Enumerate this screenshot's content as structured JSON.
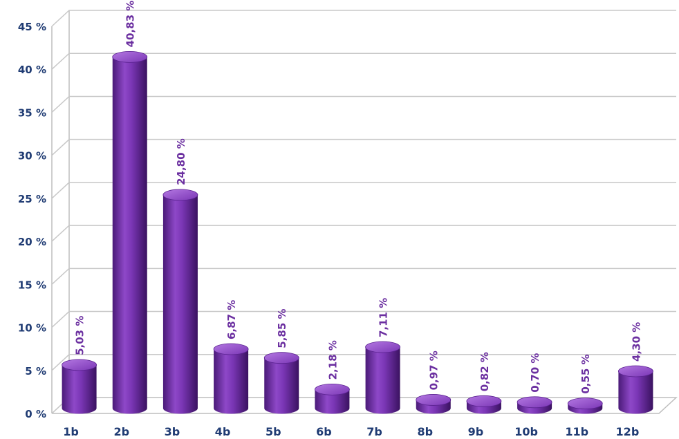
{
  "chart_data": {
    "type": "bar",
    "categories": [
      "1b",
      "2b",
      "3b",
      "4b",
      "5b",
      "6b",
      "7b",
      "8b",
      "9b",
      "10b",
      "11b",
      "12b"
    ],
    "values": [
      5.03,
      40.83,
      24.8,
      6.87,
      5.85,
      2.18,
      7.11,
      0.97,
      0.82,
      0.7,
      0.55,
      4.3
    ],
    "data_labels": [
      "5,03 %",
      "40,83 %",
      "24,80 %",
      "6,87 %",
      "5,85 %",
      "2,18 %",
      "7,11 %",
      "0,97 %",
      "0,82 %",
      "0,70 %",
      "0,55 %",
      "4,30 %"
    ],
    "y_ticks": [
      0,
      5,
      10,
      15,
      20,
      25,
      30,
      35,
      40,
      45
    ],
    "y_tick_labels": [
      "0 %",
      "5 %",
      "10 %",
      "15 %",
      "20 %",
      "25 %",
      "30 %",
      "35 %",
      "40 %",
      "45 %"
    ],
    "ylim": [
      0,
      45
    ],
    "grid": true,
    "legend": "none",
    "bar_style": "3d-cylinder",
    "colors": {
      "bar": "#7030a0",
      "bar_light": "#a866d8",
      "bar_dark": "#3f1466",
      "data_label": "#6b2fa0",
      "tick_label": "#1f3b73",
      "gridline": "#c8c8c8"
    }
  }
}
